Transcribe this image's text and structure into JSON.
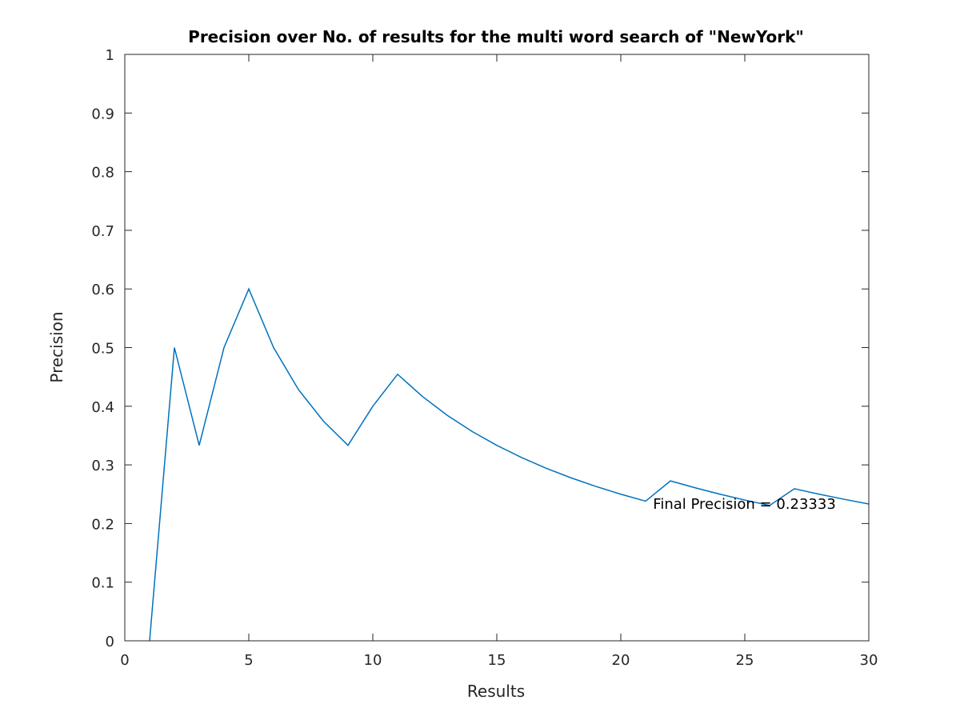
{
  "chart_data": {
    "type": "line",
    "title": "Precision over No. of results for the multi word search of \"NewYork\"",
    "xlabel": "Results",
    "ylabel": "Precision",
    "xlim": [
      0,
      30
    ],
    "ylim": [
      0,
      1
    ],
    "xticks": [
      0,
      5,
      10,
      15,
      20,
      25,
      30
    ],
    "xtick_labels": [
      "0",
      "5",
      "10",
      "15",
      "20",
      "25",
      "30"
    ],
    "yticks": [
      0,
      0.1,
      0.2,
      0.3,
      0.4,
      0.5,
      0.6,
      0.7,
      0.8,
      0.9,
      1
    ],
    "ytick_labels": [
      "0",
      "0.1",
      "0.2",
      "0.3",
      "0.4",
      "0.5",
      "0.6",
      "0.7",
      "0.8",
      "0.9",
      "1"
    ],
    "grid": false,
    "line_color": "#0072bd",
    "series": [
      {
        "x": [
          1,
          2,
          3,
          4,
          5,
          6,
          7,
          8,
          9,
          10,
          11,
          12,
          13,
          14,
          15,
          16,
          17,
          18,
          19,
          20,
          21,
          22,
          23,
          24,
          25,
          26,
          27,
          28,
          29,
          30
        ],
        "values": [
          0,
          0.5,
          0.3333,
          0.5,
          0.6,
          0.5,
          0.4286,
          0.375,
          0.3333,
          0.4,
          0.4545,
          0.4167,
          0.3846,
          0.3571,
          0.3333,
          0.3125,
          0.2941,
          0.2778,
          0.2632,
          0.25,
          0.2381,
          0.2727,
          0.2609,
          0.25,
          0.24,
          0.2308,
          0.2593,
          0.25,
          0.2414,
          0.2333
        ]
      }
    ],
    "annotations": [
      {
        "text": "Final Precision = 0.23333",
        "x": 21.3,
        "y": 0.23333
      }
    ]
  }
}
